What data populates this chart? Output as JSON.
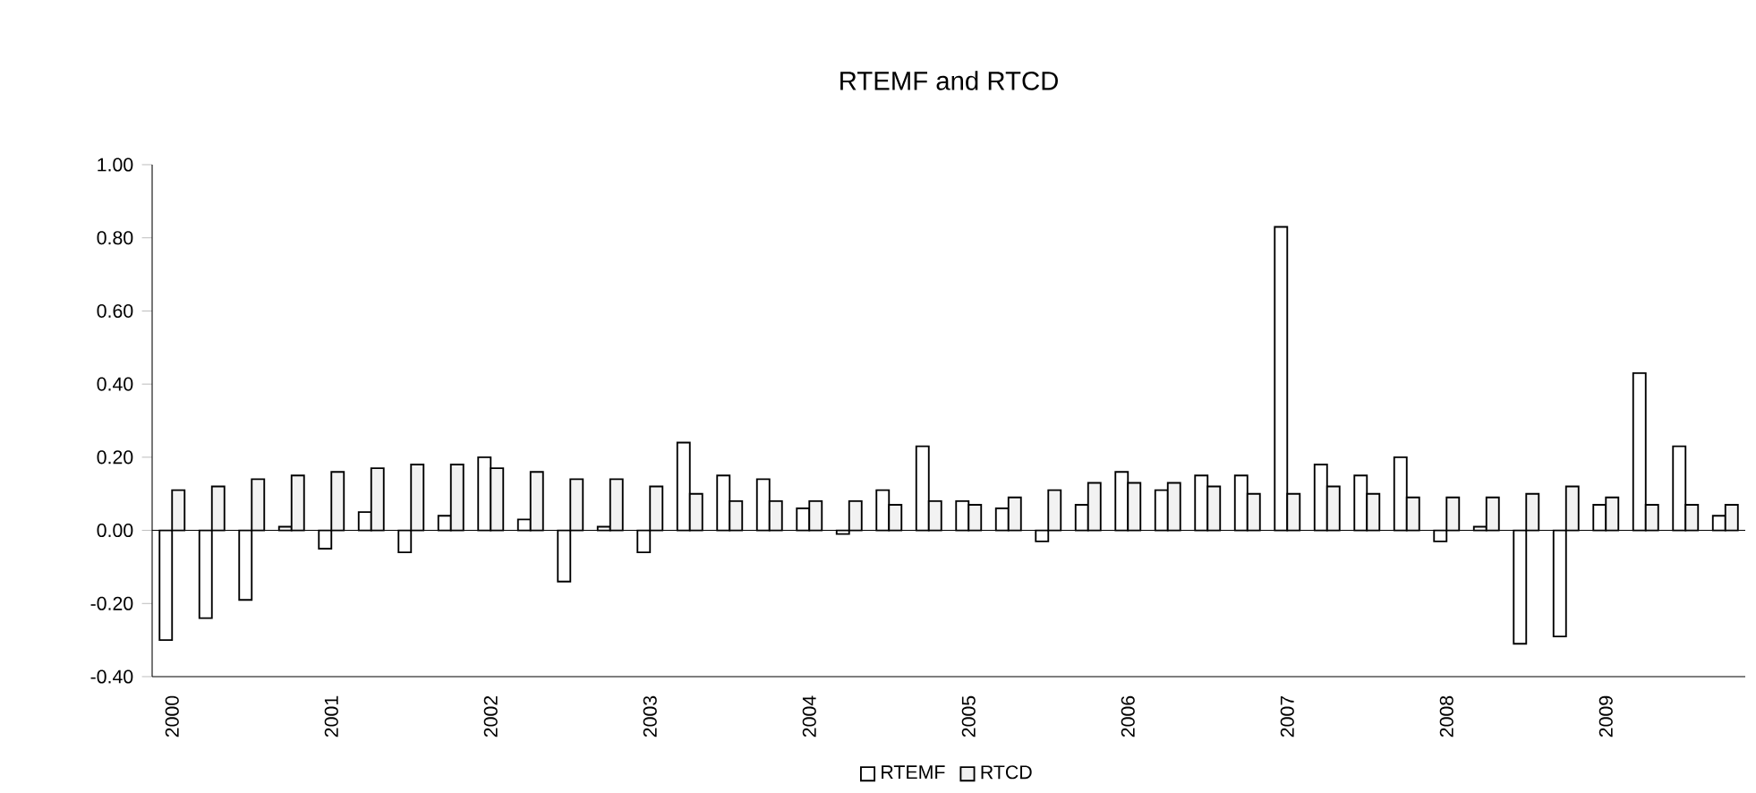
{
  "chart_data": {
    "type": "bar",
    "title": "RTEMF and RTCD",
    "categories": [
      "2000",
      null,
      null,
      null,
      "2001",
      null,
      null,
      null,
      "2002",
      null,
      null,
      null,
      "2003",
      null,
      null,
      null,
      "2004",
      null,
      null,
      null,
      "2005",
      null,
      null,
      null,
      "2006",
      null,
      null,
      null,
      "2007",
      null,
      null,
      null,
      "2008",
      null,
      null,
      null,
      "2009",
      null,
      null,
      null
    ],
    "series": [
      {
        "name": "RTEMF",
        "color": "#ffffff",
        "values": [
          -0.3,
          -0.24,
          -0.19,
          0.01,
          -0.05,
          0.05,
          -0.06,
          0.04,
          0.2,
          0.03,
          -0.14,
          0.01,
          -0.06,
          0.24,
          0.15,
          0.14,
          0.06,
          -0.01,
          0.11,
          0.23,
          0.08,
          0.06,
          -0.03,
          0.07,
          0.16,
          0.11,
          0.15,
          0.15,
          0.83,
          0.18,
          0.15,
          0.2,
          -0.03,
          0.01,
          -0.31,
          -0.29,
          0.07,
          0.43,
          0.23,
          0.04
        ]
      },
      {
        "name": "RTCD",
        "color": "#f2f2f2",
        "values": [
          0.11,
          0.12,
          0.14,
          0.15,
          0.16,
          0.17,
          0.18,
          0.18,
          0.17,
          0.16,
          0.14,
          0.14,
          0.12,
          0.1,
          0.08,
          0.08,
          0.08,
          0.08,
          0.07,
          0.08,
          0.07,
          0.09,
          0.11,
          0.13,
          0.13,
          0.13,
          0.12,
          0.1,
          0.1,
          0.12,
          0.1,
          0.09,
          0.09,
          0.09,
          0.1,
          0.12,
          0.09,
          0.07,
          0.07,
          0.07
        ]
      }
    ],
    "ylim": [
      -0.4,
      1.0
    ],
    "yticks": [
      {
        "value": -0.4,
        "label": "-0.40"
      },
      {
        "value": -0.2,
        "label": "-0.20"
      },
      {
        "value": 0,
        "label": "0.00"
      },
      {
        "value": 0.2,
        "label": "0.20"
      },
      {
        "value": 0.4,
        "label": "0.40"
      },
      {
        "value": 0.6,
        "label": "0.60"
      },
      {
        "value": 0.8,
        "label": "0.80"
      },
      {
        "value": 1.0,
        "label": "1.00"
      }
    ],
    "legend": "bottom"
  }
}
